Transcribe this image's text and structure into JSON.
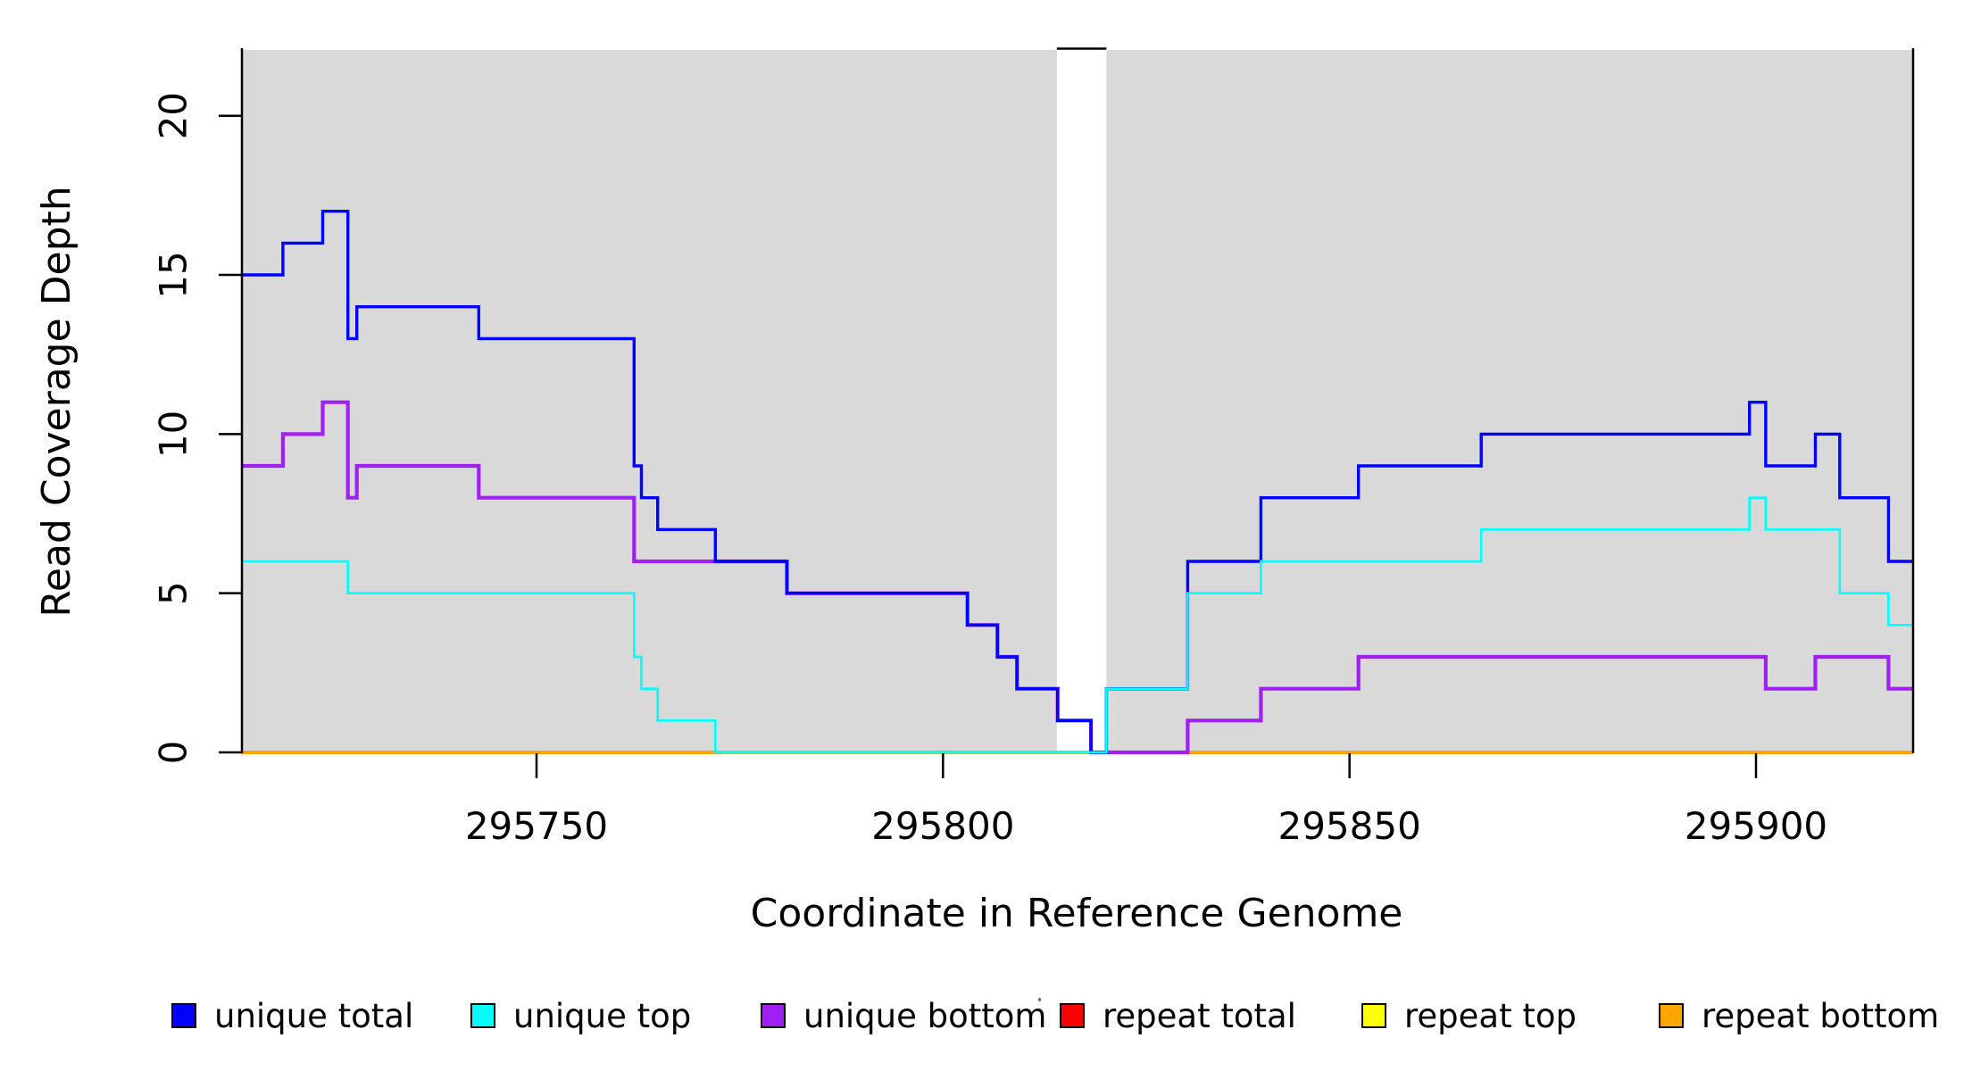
{
  "chart_data": {
    "type": "line",
    "subtype": "step-coverage",
    "title": "",
    "xlabel": "Coordinate in Reference Genome",
    "ylabel": "Read Coverage Depth",
    "xlim": [
      295713.7,
      295919.3
    ],
    "ylim": [
      0,
      22.1
    ],
    "grid": false,
    "plot_bg_color": "#d9d9d9",
    "gap_region": {
      "from": 295814.0,
      "to": 295820.1
    },
    "background_regions": [
      {
        "from": 295713.7,
        "to": 295814.0,
        "color": "#d9d9d9"
      },
      {
        "from": 295820.1,
        "to": 295919.3,
        "color": "#d9d9d9"
      }
    ],
    "xticks": [
      {
        "v": 295750,
        "label": "295750"
      },
      {
        "v": 295800,
        "label": "295800"
      },
      {
        "v": 295850,
        "label": "295850"
      },
      {
        "v": 295900,
        "label": "295900"
      }
    ],
    "yticks": [
      {
        "v": 0,
        "label": "0"
      },
      {
        "v": 5,
        "label": "5"
      },
      {
        "v": 10,
        "label": "10"
      },
      {
        "v": 15,
        "label": "15"
      },
      {
        "v": 20,
        "label": "20"
      }
    ],
    "series": [
      {
        "name": "repeat total",
        "color": "#ff0000",
        "width": 3,
        "steps": [
          [
            295713.7,
            0
          ],
          [
            295919.3,
            0
          ]
        ]
      },
      {
        "name": "repeat top",
        "color": "#ffff00",
        "width": 3,
        "steps": [
          [
            295713.7,
            0
          ],
          [
            295919.3,
            0
          ]
        ]
      },
      {
        "name": "repeat bottom",
        "color": "#ffa500",
        "width": 4,
        "steps": [
          [
            295713.7,
            0
          ],
          [
            295919.3,
            0
          ]
        ]
      },
      {
        "name": "unique bottom",
        "color": "#a020f0",
        "width": 4.2,
        "steps": [
          [
            295713.7,
            9
          ],
          [
            295718.8,
            10
          ],
          [
            295723.7,
            11
          ],
          [
            295726.8,
            8
          ],
          [
            295727.9,
            9
          ],
          [
            295742.9,
            8
          ],
          [
            295762.0,
            6
          ],
          [
            295780.8,
            5
          ],
          [
            295803.0,
            4
          ],
          [
            295806.7,
            3
          ],
          [
            295809.1,
            2
          ],
          [
            295814.1,
            1
          ],
          [
            295818.2,
            0
          ],
          [
            295830.1,
            1
          ],
          [
            295839.1,
            2
          ],
          [
            295851.1,
            3
          ],
          [
            295901.2,
            2
          ],
          [
            295907.3,
            3
          ],
          [
            295916.3,
            2
          ],
          [
            295919.3,
            2
          ]
        ]
      },
      {
        "name": "unique total",
        "color": "#0000ff",
        "width": 3.4,
        "steps": [
          [
            295713.7,
            15
          ],
          [
            295718.8,
            16
          ],
          [
            295723.7,
            17
          ],
          [
            295726.8,
            13
          ],
          [
            295727.9,
            14
          ],
          [
            295742.9,
            13
          ],
          [
            295762.0,
            9
          ],
          [
            295762.9,
            8
          ],
          [
            295764.9,
            7
          ],
          [
            295772.0,
            6
          ],
          [
            295780.8,
            5
          ],
          [
            295803.0,
            4
          ],
          [
            295806.7,
            3
          ],
          [
            295809.1,
            2
          ],
          [
            295814.1,
            1
          ],
          [
            295818.2,
            0
          ],
          [
            295820.1,
            2
          ],
          [
            295830.1,
            6
          ],
          [
            295839.1,
            8
          ],
          [
            295851.1,
            9
          ],
          [
            295866.2,
            10
          ],
          [
            295899.2,
            11
          ],
          [
            295901.2,
            9
          ],
          [
            295907.3,
            10
          ],
          [
            295910.3,
            8
          ],
          [
            295916.3,
            6
          ],
          [
            295919.3,
            6
          ]
        ]
      },
      {
        "name": "unique top",
        "color": "#00ffff",
        "width": 2.7,
        "steps": [
          [
            295713.7,
            6
          ],
          [
            295726.8,
            5
          ],
          [
            295762.0,
            3
          ],
          [
            295762.9,
            2
          ],
          [
            295764.9,
            1
          ],
          [
            295772.0,
            0
          ],
          [
            295820.1,
            2
          ],
          [
            295830.1,
            5
          ],
          [
            295839.1,
            6
          ],
          [
            295866.2,
            7
          ],
          [
            295899.2,
            8
          ],
          [
            295901.2,
            7
          ],
          [
            295910.3,
            5
          ],
          [
            295916.3,
            4
          ],
          [
            295919.3,
            4
          ]
        ]
      }
    ],
    "legend": {
      "position": "bottom",
      "entries": [
        {
          "label": "unique total",
          "color": "#0000ff"
        },
        {
          "label": "unique top",
          "color": "#00ffff"
        },
        {
          "label": "unique bottom",
          "color": "#a020f0"
        },
        {
          "label": "repeat total",
          "color": "#ff0000"
        },
        {
          "label": "repeat top",
          "color": "#ffff00"
        },
        {
          "label": "repeat bottom",
          "color": "#ffa500"
        }
      ]
    }
  }
}
